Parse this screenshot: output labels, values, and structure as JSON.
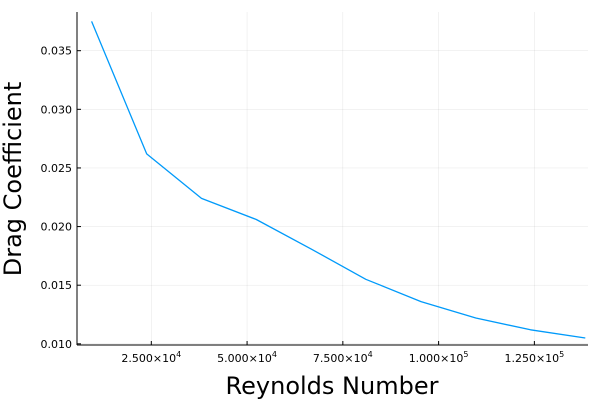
{
  "chart_data": {
    "type": "line",
    "title": "",
    "xlabel": "Reynolds Number",
    "ylabel": "Drag Coefficient",
    "xlim": [
      5600,
      139000
    ],
    "ylim": [
      0.0099,
      0.0383
    ],
    "x_ticks": [
      {
        "value": 25000,
        "mantissa": "2.500",
        "exp": "4"
      },
      {
        "value": 50000,
        "mantissa": "5.000",
        "exp": "4"
      },
      {
        "value": 75000,
        "mantissa": "7.500",
        "exp": "4"
      },
      {
        "value": 100000,
        "mantissa": "1.000",
        "exp": "5"
      },
      {
        "value": 125000,
        "mantissa": "1.250",
        "exp": "5"
      }
    ],
    "y_ticks": [
      {
        "value": 0.01,
        "label": "0.010"
      },
      {
        "value": 0.015,
        "label": "0.015"
      },
      {
        "value": 0.02,
        "label": "0.020"
      },
      {
        "value": 0.025,
        "label": "0.025"
      },
      {
        "value": 0.03,
        "label": "0.030"
      },
      {
        "value": 0.035,
        "label": "0.035"
      }
    ],
    "grid": true,
    "legend": "none",
    "series": [
      {
        "color": "#009AFA",
        "x": [
          9400,
          23800,
          38100,
          52400,
          66700,
          81000,
          95400,
          109700,
          124000,
          138300
        ],
        "y": [
          0.0375,
          0.0262,
          0.0224,
          0.0206,
          0.0181,
          0.0155,
          0.0136,
          0.0122,
          0.0112,
          0.0105
        ]
      }
    ]
  }
}
